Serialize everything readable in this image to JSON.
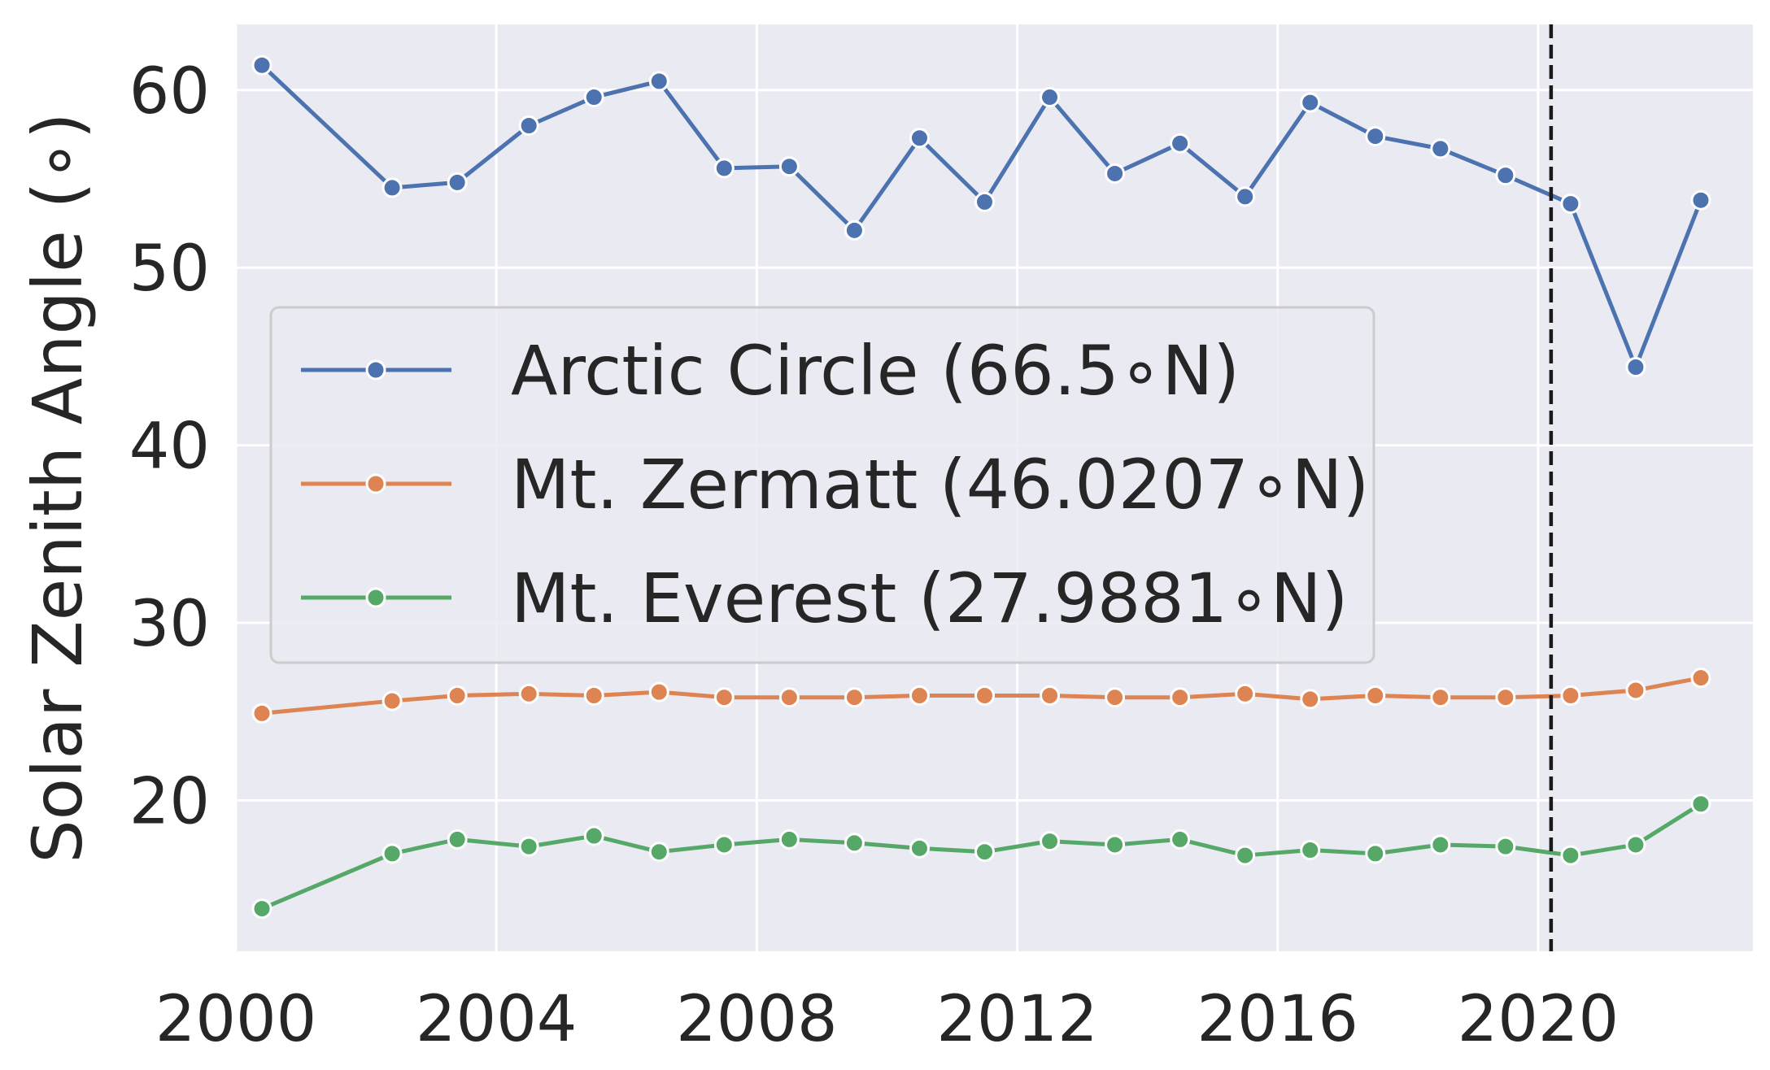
{
  "colors": {
    "background": "#eaeaf2",
    "grid": "#ffffff",
    "text": "#262626",
    "vline": "#1a1a1a"
  },
  "chart_data": {
    "type": "line",
    "ylabel": "Solar Zenith Angle (∘)",
    "xlim": [
      2000,
      2023.3
    ],
    "ylim": [
      11.5,
      63.7
    ],
    "xticks": [
      "2000",
      "2004",
      "2008",
      "2012",
      "2016",
      "2020"
    ],
    "yticks": [
      "20",
      "30",
      "40",
      "50",
      "60"
    ],
    "grid": true,
    "legend_position": "center-left",
    "vline_x": 2020.2,
    "vline_style": "dashed",
    "x": [
      2000.4,
      2002.4,
      2003.4,
      2004.5,
      2005.5,
      2006.5,
      2007.5,
      2008.5,
      2009.5,
      2010.5,
      2011.5,
      2012.5,
      2013.5,
      2014.5,
      2015.5,
      2016.5,
      2017.5,
      2018.5,
      2019.5,
      2020.5,
      2021.5,
      2022.5
    ],
    "series": [
      {
        "name": "Arctic Circle (66.5∘N)",
        "color": "#4c72b0",
        "values": [
          61.4,
          54.5,
          54.8,
          58.0,
          59.6,
          60.5,
          55.6,
          55.7,
          52.1,
          57.3,
          53.7,
          59.6,
          55.3,
          57.0,
          54.0,
          59.3,
          57.4,
          56.7,
          55.2,
          53.6,
          44.4,
          53.8
        ]
      },
      {
        "name": "Mt. Zermatt (46.0207∘N)",
        "color": "#dd8452",
        "values": [
          24.9,
          25.6,
          25.9,
          26.0,
          25.9,
          26.1,
          25.8,
          25.8,
          25.8,
          25.9,
          25.9,
          25.9,
          25.8,
          25.8,
          26.0,
          25.7,
          25.9,
          25.8,
          25.8,
          25.9,
          26.2,
          26.9
        ]
      },
      {
        "name": "Mt. Everest (27.9881∘N)",
        "color": "#55a868",
        "values": [
          13.9,
          17.0,
          17.8,
          17.4,
          18.0,
          17.1,
          17.5,
          17.8,
          17.6,
          17.3,
          17.1,
          17.7,
          17.5,
          17.8,
          16.9,
          17.2,
          17.0,
          17.5,
          17.4,
          16.9,
          17.5,
          19.8
        ]
      }
    ]
  }
}
